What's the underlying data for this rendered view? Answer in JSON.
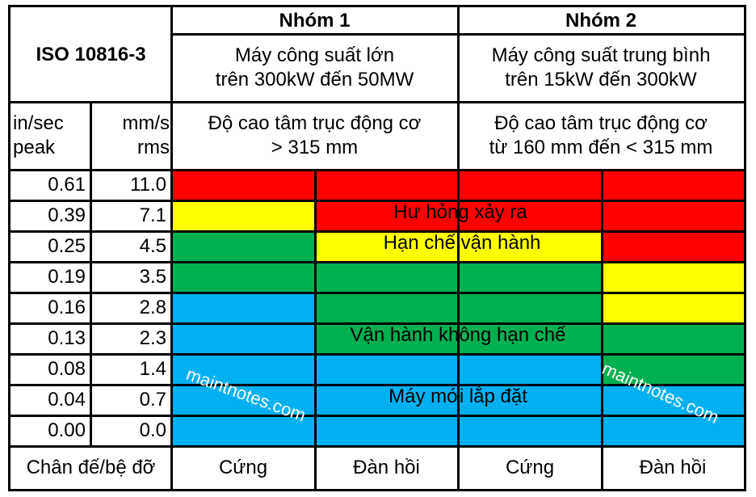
{
  "table": {
    "title": "ISO 10816-3",
    "groups": [
      {
        "name": "Nhóm 1",
        "machine_line1": "Máy công suất lớn",
        "machine_line2": "trên 300kW đến 50MW",
        "shaft_line1": "Độ cao tâm trục động cơ",
        "shaft_line2": "> 315 mm"
      },
      {
        "name": "Nhóm 2",
        "machine_line1": "Máy công suất trung bình",
        "machine_line2": "trên 15kW đến 300kW",
        "shaft_line1": "Độ cao tâm trục động cơ",
        "shaft_line2": "từ 160 mm đến < 315 mm"
      }
    ],
    "unit_headers": {
      "in_sec_line1": "in/sec",
      "in_sec_line2": "peak",
      "mm_s_line1": "mm/s",
      "mm_s_line2": "rms"
    },
    "rows": [
      {
        "in_sec": "0.61",
        "mm_s": "11.0",
        "zones": [
          "red",
          "red",
          "red",
          "red"
        ]
      },
      {
        "in_sec": "0.39",
        "mm_s": "7.1",
        "zones": [
          "yellow",
          "red",
          "red",
          "red"
        ]
      },
      {
        "in_sec": "0.25",
        "mm_s": "4.5",
        "zones": [
          "green",
          "yellow",
          "yellow",
          "red"
        ]
      },
      {
        "in_sec": "0.19",
        "mm_s": "3.5",
        "zones": [
          "green",
          "green",
          "green",
          "yellow"
        ]
      },
      {
        "in_sec": "0.16",
        "mm_s": "2.8",
        "zones": [
          "blue",
          "green",
          "green",
          "yellow"
        ]
      },
      {
        "in_sec": "0.13",
        "mm_s": "2.3",
        "zones": [
          "blue",
          "green",
          "green",
          "green"
        ]
      },
      {
        "in_sec": "0.08",
        "mm_s": "1.4",
        "zones": [
          "blue",
          "blue",
          "blue",
          "green"
        ]
      },
      {
        "in_sec": "0.04",
        "mm_s": "0.7",
        "zones": [
          "blue",
          "blue",
          "blue",
          "blue"
        ]
      },
      {
        "in_sec": "0.00",
        "mm_s": "0.0",
        "zones": [
          "blue",
          "blue",
          "blue",
          "blue"
        ]
      }
    ],
    "zone_labels": {
      "damage": "Hư hỏng xảy ra",
      "restricted": "Hạn chế vận hành",
      "unrestricted": "Vận hành không hạn chế",
      "new": "Máy mới lắp đặt"
    },
    "footer": {
      "label": "Chân đế/bệ đỡ",
      "columns": [
        "Cứng",
        "Đàn hồi",
        "Cứng",
        "Đàn hồi"
      ]
    },
    "colors": {
      "red": "#FF0000",
      "yellow": "#FFFF00",
      "green": "#00B050",
      "blue": "#00B0F0"
    },
    "watermark": "maintnotes.com"
  }
}
